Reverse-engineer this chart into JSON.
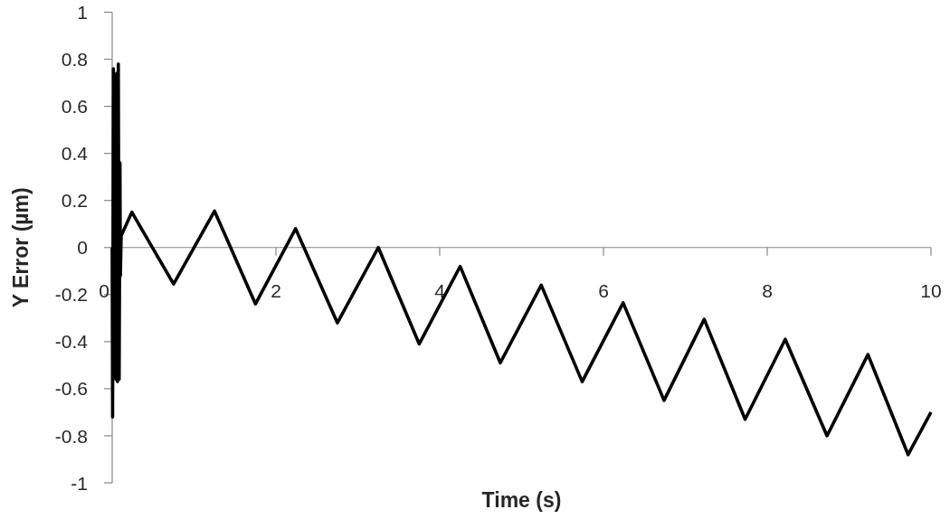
{
  "chart_data": {
    "type": "line",
    "xlabel": "Time (s)",
    "ylabel": "Y Error (µm)",
    "color": "#000000",
    "x": [
      0,
      0.005,
      0.015,
      0.025,
      0.035,
      0.045,
      0.055,
      0.065,
      0.075,
      0.085,
      0.095,
      0.1,
      0.11,
      0.24,
      0.75,
      1.25,
      1.75,
      2.24,
      2.75,
      3.25,
      3.75,
      4.25,
      4.74,
      5.24,
      5.74,
      6.24,
      6.74,
      7.23,
      7.73,
      8.22,
      8.73,
      9.23,
      9.72,
      10
    ],
    "values": [
      0,
      -0.72,
      0.76,
      -0.55,
      0.7,
      -0.56,
      0.74,
      -0.57,
      0.78,
      -0.56,
      0.36,
      -0.12,
      0.05,
      0.15,
      -0.155,
      0.155,
      -0.24,
      0.08,
      -0.32,
      0,
      -0.41,
      -0.08,
      -0.49,
      -0.16,
      -0.57,
      -0.235,
      -0.65,
      -0.305,
      -0.73,
      -0.39,
      -0.8,
      -0.455,
      -0.88,
      -0.7
    ],
    "xlim": [
      0,
      10
    ],
    "ylim": [
      -1,
      1
    ],
    "xticks": [
      0,
      2,
      4,
      6,
      8,
      10
    ],
    "yticks": [
      -1,
      -0.8,
      -0.6,
      -0.4,
      -0.2,
      0,
      0.2,
      0.4,
      0.6,
      0.8,
      1
    ]
  }
}
